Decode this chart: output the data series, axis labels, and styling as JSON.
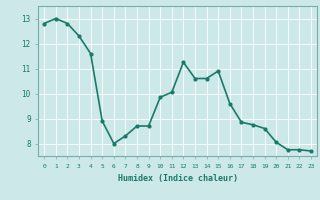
{
  "x": [
    0,
    1,
    2,
    3,
    4,
    5,
    6,
    7,
    8,
    9,
    10,
    11,
    12,
    13,
    14,
    15,
    16,
    17,
    18,
    19,
    20,
    21,
    22,
    23
  ],
  "y": [
    12.8,
    13.0,
    12.8,
    12.3,
    11.6,
    8.9,
    8.0,
    8.3,
    8.7,
    8.7,
    9.85,
    10.05,
    11.25,
    10.6,
    10.6,
    10.9,
    9.6,
    8.85,
    8.75,
    8.6,
    8.05,
    7.75,
    7.75,
    7.7
  ],
  "xlabel": "Humidex (Indice chaleur)",
  "ylim": [
    7.5,
    13.5
  ],
  "xlim": [
    -0.5,
    23.5
  ],
  "yticks": [
    8,
    9,
    10,
    11,
    12,
    13
  ],
  "xticks": [
    0,
    1,
    2,
    3,
    4,
    5,
    6,
    7,
    8,
    9,
    10,
    11,
    12,
    13,
    14,
    15,
    16,
    17,
    18,
    19,
    20,
    21,
    22,
    23
  ],
  "line_color": "#1a7a6a",
  "marker": "o",
  "marker_size": 2,
  "bg_color": "#cce8e8",
  "grid_color": "#ffffff",
  "tick_color": "#1a7a6a",
  "label_color": "#1a7a6a",
  "line_width": 1.2,
  "spine_color": "#7aacac"
}
